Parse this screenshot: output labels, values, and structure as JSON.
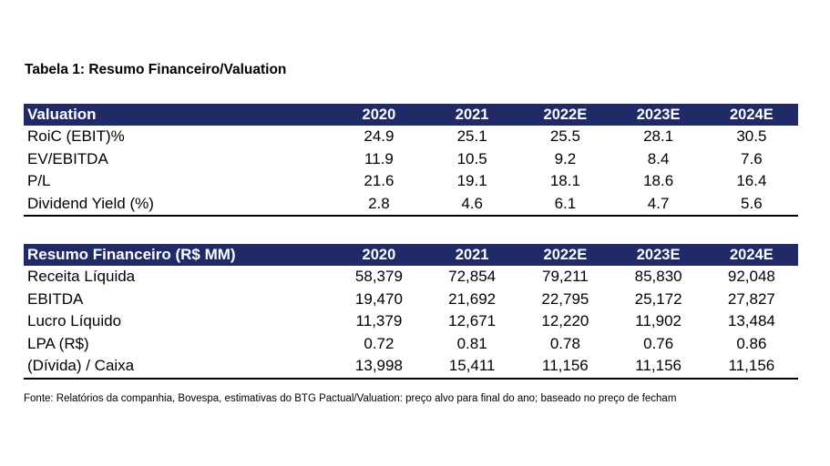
{
  "title": "Tabela 1: Resumo Financeiro/Valuation",
  "valuation": {
    "header": [
      "Valuation",
      "2020",
      "2021",
      "2022E",
      "2023E",
      "2024E"
    ],
    "rows": [
      [
        "RoiC (EBIT)%",
        "24.9",
        "25.1",
        "25.5",
        "28.1",
        "30.5"
      ],
      [
        "EV/EBITDA",
        "11.9",
        "10.5",
        "9.2",
        "8.4",
        "7.6"
      ],
      [
        "P/L",
        "21.6",
        "19.1",
        "18.1",
        "18.6",
        "16.4"
      ],
      [
        "Dividend Yield (%)",
        "2.8",
        "4.6",
        "6.1",
        "4.7",
        "5.6"
      ]
    ]
  },
  "financial": {
    "header": [
      "Resumo Financeiro (R$ MM)",
      "2020",
      "2021",
      "2022E",
      "2023E",
      "2024E"
    ],
    "rows": [
      [
        "Receita Líquida",
        "58,379",
        "72,854",
        "79,211",
        "85,830",
        "92,048"
      ],
      [
        "EBITDA",
        "19,470",
        "21,692",
        "22,795",
        "25,172",
        "27,827"
      ],
      [
        "Lucro Líquido",
        "11,379",
        "12,671",
        "12,220",
        "11,902",
        "13,484"
      ],
      [
        "LPA (R$)",
        "0.72",
        "0.81",
        "0.78",
        "0.76",
        "0.86"
      ],
      [
        "(Dívida) / Caixa",
        "13,998",
        "15,411",
        "11,156",
        "11,156",
        "11,156"
      ]
    ]
  },
  "source": "Fonte: Relatórios da companhia, Bovespa, estimativas do BTG Pactual/Valuation: preço alvo para final do ano; baseado no preço de fecham",
  "colors": {
    "header_bg": "#1f2a67",
    "header_text": "#ffffff"
  }
}
